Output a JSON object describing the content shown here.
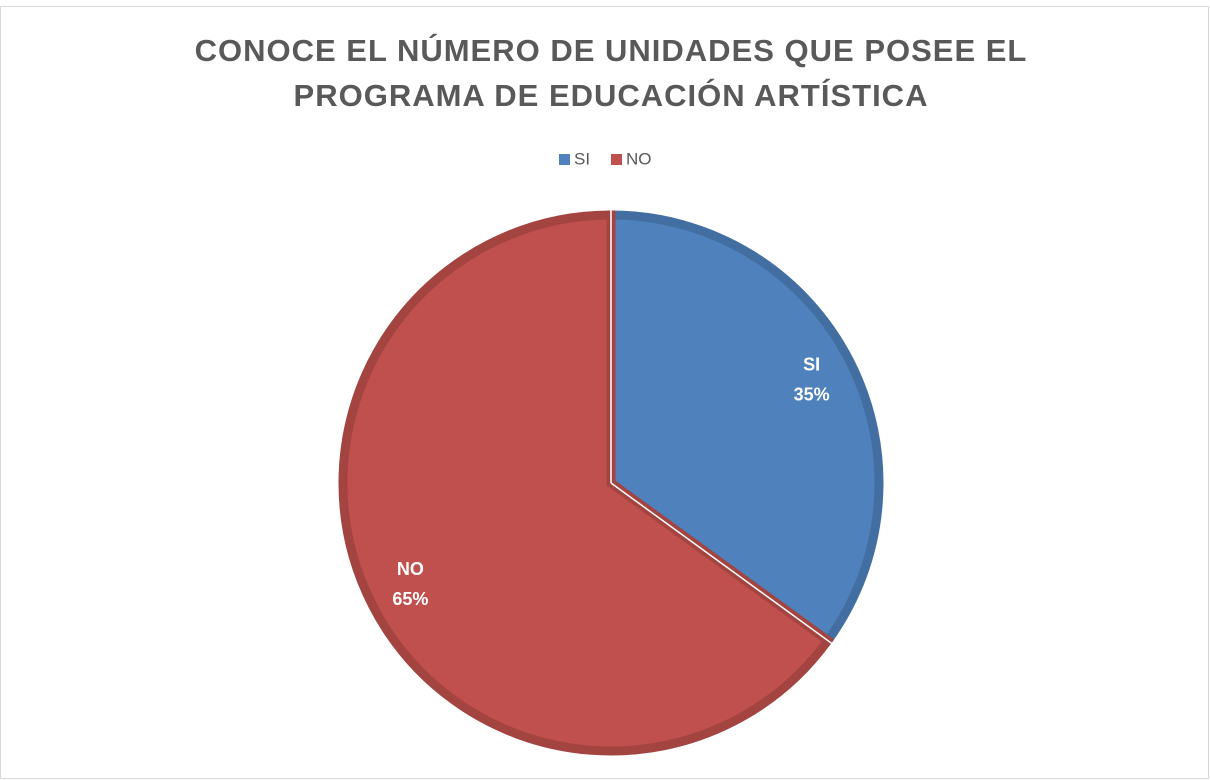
{
  "chart_data": {
    "type": "pie",
    "title": [
      "CONOCE EL NÚMERO DE UNIDADES QUE POSEE EL",
      "PROGRAMA DE EDUCACIÓN ARTÍSTICA"
    ],
    "categories": [
      "SI",
      "NO"
    ],
    "values": [
      35,
      65
    ],
    "value_labels": [
      "35%",
      "65%"
    ],
    "colors": [
      "#4f81bd",
      "#c0504d"
    ],
    "legend": "top"
  }
}
